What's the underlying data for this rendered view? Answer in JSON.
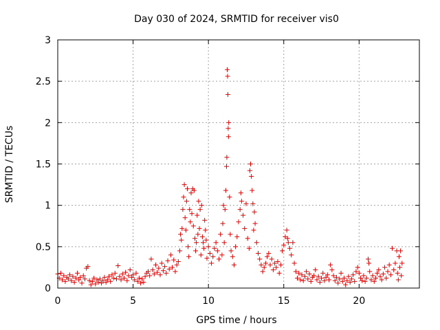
{
  "chart_data": {
    "type": "scatter",
    "title": "Day 030 of 2024, SRMTID for receiver vis0",
    "xlabel": "GPS time / hours",
    "ylabel": "SRMTID / TECUs",
    "xlim": [
      0,
      24
    ],
    "ylim": [
      0,
      3
    ],
    "x_ticks": [
      0,
      5,
      10,
      15,
      20
    ],
    "x_tick_labels": [
      "0",
      "5",
      "10",
      "15",
      "20"
    ],
    "y_ticks": [
      0,
      0.5,
      1,
      1.5,
      2,
      2.5,
      3
    ],
    "y_tick_labels": [
      "0",
      "0.5",
      "1",
      "1.5",
      "2",
      "2.5",
      "3"
    ],
    "grid": true,
    "marker": "+",
    "series": [
      {
        "name": "vis0",
        "color": "#e00000",
        "points": [
          [
            0.0,
            0.17
          ],
          [
            0.1,
            0.12
          ],
          [
            0.2,
            0.18
          ],
          [
            0.3,
            0.1
          ],
          [
            0.4,
            0.15
          ],
          [
            0.5,
            0.08
          ],
          [
            0.6,
            0.13
          ],
          [
            0.7,
            0.11
          ],
          [
            0.8,
            0.16
          ],
          [
            0.9,
            0.09
          ],
          [
            1.0,
            0.14
          ],
          [
            1.1,
            0.07
          ],
          [
            1.2,
            0.12
          ],
          [
            1.3,
            0.18
          ],
          [
            1.4,
            0.1
          ],
          [
            1.5,
            0.13
          ],
          [
            1.6,
            0.06
          ],
          [
            1.7,
            0.15
          ],
          [
            1.8,
            0.11
          ],
          [
            1.9,
            0.24
          ],
          [
            2.0,
            0.26
          ],
          [
            2.1,
            0.09
          ],
          [
            2.2,
            0.04
          ],
          [
            2.3,
            0.08
          ],
          [
            2.4,
            0.12
          ],
          [
            2.5,
            0.05
          ],
          [
            2.6,
            0.1
          ],
          [
            2.7,
            0.07
          ],
          [
            2.8,
            0.11
          ],
          [
            2.9,
            0.06
          ],
          [
            3.0,
            0.09
          ],
          [
            3.1,
            0.13
          ],
          [
            3.2,
            0.07
          ],
          [
            3.3,
            0.1
          ],
          [
            3.4,
            0.14
          ],
          [
            3.5,
            0.08
          ],
          [
            3.6,
            0.16
          ],
          [
            3.7,
            0.12
          ],
          [
            3.8,
            0.18
          ],
          [
            3.9,
            0.11
          ],
          [
            4.0,
            0.27
          ],
          [
            4.1,
            0.14
          ],
          [
            4.2,
            0.1
          ],
          [
            4.3,
            0.17
          ],
          [
            4.4,
            0.12
          ],
          [
            4.5,
            0.19
          ],
          [
            4.6,
            0.09
          ],
          [
            4.7,
            0.15
          ],
          [
            4.8,
            0.22
          ],
          [
            4.9,
            0.13
          ],
          [
            5.0,
            0.16
          ],
          [
            5.1,
            0.1
          ],
          [
            5.2,
            0.18
          ],
          [
            5.3,
            0.08
          ],
          [
            5.4,
            0.12
          ],
          [
            5.5,
            0.06
          ],
          [
            5.6,
            0.11
          ],
          [
            5.7,
            0.07
          ],
          [
            5.8,
            0.14
          ],
          [
            5.9,
            0.18
          ],
          [
            6.0,
            0.2
          ],
          [
            6.1,
            0.15
          ],
          [
            6.2,
            0.35
          ],
          [
            6.3,
            0.22
          ],
          [
            6.4,
            0.17
          ],
          [
            6.5,
            0.28
          ],
          [
            6.6,
            0.19
          ],
          [
            6.7,
            0.24
          ],
          [
            6.8,
            0.16
          ],
          [
            6.9,
            0.3
          ],
          [
            7.0,
            0.21
          ],
          [
            7.1,
            0.26
          ],
          [
            7.2,
            0.18
          ],
          [
            7.3,
            0.33
          ],
          [
            7.4,
            0.23
          ],
          [
            7.5,
            0.4
          ],
          [
            7.6,
            0.25
          ],
          [
            7.7,
            0.34
          ],
          [
            7.8,
            0.2
          ],
          [
            7.9,
            0.28
          ],
          [
            8.0,
            0.32
          ],
          [
            8.1,
            0.45
          ],
          [
            8.15,
            0.65
          ],
          [
            8.2,
            0.58
          ],
          [
            8.25,
            0.72
          ],
          [
            8.3,
            0.95
          ],
          [
            8.35,
            1.1
          ],
          [
            8.4,
            1.25
          ],
          [
            8.45,
            0.85
          ],
          [
            8.5,
            0.7
          ],
          [
            8.55,
            1.05
          ],
          [
            8.6,
            1.2
          ],
          [
            8.65,
            0.5
          ],
          [
            8.7,
            0.38
          ],
          [
            8.75,
            0.95
          ],
          [
            8.8,
            0.8
          ],
          [
            8.85,
            1.15
          ],
          [
            8.9,
            0.9
          ],
          [
            8.95,
            1.2
          ],
          [
            9.0,
            0.75
          ],
          [
            9.05,
            1.18
          ],
          [
            9.1,
            0.6
          ],
          [
            9.15,
            0.45
          ],
          [
            9.2,
            0.55
          ],
          [
            9.25,
            0.88
          ],
          [
            9.3,
            0.65
          ],
          [
            9.35,
            1.05
          ],
          [
            9.4,
            0.72
          ],
          [
            9.45,
            0.95
          ],
          [
            9.5,
            0.4
          ],
          [
            9.55,
            1.0
          ],
          [
            9.6,
            0.62
          ],
          [
            9.65,
            0.55
          ],
          [
            9.7,
            0.48
          ],
          [
            9.75,
            0.82
          ],
          [
            9.8,
            0.7
          ],
          [
            9.85,
            0.58
          ],
          [
            9.9,
            0.36
          ],
          [
            10.0,
            0.5
          ],
          [
            10.1,
            0.42
          ],
          [
            10.2,
            0.3
          ],
          [
            10.3,
            0.38
          ],
          [
            10.4,
            0.48
          ],
          [
            10.5,
            0.55
          ],
          [
            10.6,
            0.45
          ],
          [
            10.7,
            0.35
          ],
          [
            10.8,
            0.65
          ],
          [
            10.9,
            0.4
          ],
          [
            10.95,
            0.78
          ],
          [
            11.0,
            1.0
          ],
          [
            11.05,
            0.55
          ],
          [
            11.1,
            0.95
          ],
          [
            11.15,
            1.18
          ],
          [
            11.2,
            1.47
          ],
          [
            11.22,
            1.58
          ],
          [
            11.25,
            2.64
          ],
          [
            11.27,
            2.56
          ],
          [
            11.29,
            2.34
          ],
          [
            11.31,
            1.93
          ],
          [
            11.33,
            1.83
          ],
          [
            11.35,
            2.0
          ],
          [
            11.4,
            1.1
          ],
          [
            11.45,
            0.65
          ],
          [
            11.5,
            0.45
          ],
          [
            11.6,
            0.38
          ],
          [
            11.7,
            0.28
          ],
          [
            11.8,
            0.5
          ],
          [
            11.9,
            0.62
          ],
          [
            12.0,
            0.8
          ],
          [
            12.1,
            0.95
          ],
          [
            12.15,
            1.15
          ],
          [
            12.2,
            1.05
          ],
          [
            12.3,
            0.88
          ],
          [
            12.4,
            0.72
          ],
          [
            12.5,
            1.02
          ],
          [
            12.6,
            0.6
          ],
          [
            12.7,
            0.48
          ],
          [
            12.75,
            1.42
          ],
          [
            12.8,
            1.5
          ],
          [
            12.85,
            1.35
          ],
          [
            12.9,
            1.18
          ],
          [
            12.95,
            1.02
          ],
          [
            13.0,
            0.7
          ],
          [
            13.05,
            0.92
          ],
          [
            13.1,
            0.78
          ],
          [
            13.2,
            0.55
          ],
          [
            13.3,
            0.42
          ],
          [
            13.4,
            0.35
          ],
          [
            13.5,
            0.28
          ],
          [
            13.6,
            0.2
          ],
          [
            13.7,
            0.25
          ],
          [
            13.8,
            0.3
          ],
          [
            13.9,
            0.38
          ],
          [
            14.0,
            0.42
          ],
          [
            14.1,
            0.28
          ],
          [
            14.2,
            0.35
          ],
          [
            14.3,
            0.22
          ],
          [
            14.4,
            0.3
          ],
          [
            14.5,
            0.25
          ],
          [
            14.6,
            0.32
          ],
          [
            14.7,
            0.18
          ],
          [
            14.8,
            0.28
          ],
          [
            14.9,
            0.45
          ],
          [
            15.0,
            0.52
          ],
          [
            15.1,
            0.62
          ],
          [
            15.2,
            0.7
          ],
          [
            15.25,
            0.6
          ],
          [
            15.3,
            0.55
          ],
          [
            15.4,
            0.48
          ],
          [
            15.5,
            0.4
          ],
          [
            15.6,
            0.55
          ],
          [
            15.7,
            0.3
          ],
          [
            15.8,
            0.2
          ],
          [
            15.9,
            0.12
          ],
          [
            16.0,
            0.18
          ],
          [
            16.1,
            0.1
          ],
          [
            16.2,
            0.16
          ],
          [
            16.3,
            0.09
          ],
          [
            16.4,
            0.14
          ],
          [
            16.5,
            0.2
          ],
          [
            16.6,
            0.11
          ],
          [
            16.7,
            0.17
          ],
          [
            16.8,
            0.08
          ],
          [
            16.9,
            0.13
          ],
          [
            17.0,
            0.15
          ],
          [
            17.1,
            0.22
          ],
          [
            17.2,
            0.1
          ],
          [
            17.3,
            0.14
          ],
          [
            17.4,
            0.07
          ],
          [
            17.5,
            0.12
          ],
          [
            17.6,
            0.18
          ],
          [
            17.7,
            0.09
          ],
          [
            17.8,
            0.13
          ],
          [
            17.9,
            0.16
          ],
          [
            18.0,
            0.1
          ],
          [
            18.1,
            0.28
          ],
          [
            18.2,
            0.22
          ],
          [
            18.3,
            0.15
          ],
          [
            18.4,
            0.09
          ],
          [
            18.5,
            0.13
          ],
          [
            18.6,
            0.06
          ],
          [
            18.7,
            0.11
          ],
          [
            18.8,
            0.18
          ],
          [
            18.9,
            0.08
          ],
          [
            19.0,
            0.12
          ],
          [
            19.1,
            0.04
          ],
          [
            19.2,
            0.09
          ],
          [
            19.3,
            0.14
          ],
          [
            19.4,
            0.07
          ],
          [
            19.5,
            0.11
          ],
          [
            19.6,
            0.16
          ],
          [
            19.7,
            0.08
          ],
          [
            19.8,
            0.2
          ],
          [
            19.9,
            0.25
          ],
          [
            20.0,
            0.18
          ],
          [
            20.1,
            0.12
          ],
          [
            20.2,
            0.09
          ],
          [
            20.3,
            0.15
          ],
          [
            20.4,
            0.08
          ],
          [
            20.5,
            0.12
          ],
          [
            20.6,
            0.35
          ],
          [
            20.65,
            0.3
          ],
          [
            20.7,
            0.2
          ],
          [
            20.8,
            0.1
          ],
          [
            20.9,
            0.15
          ],
          [
            21.0,
            0.08
          ],
          [
            21.1,
            0.12
          ],
          [
            21.2,
            0.18
          ],
          [
            21.3,
            0.22
          ],
          [
            21.4,
            0.14
          ],
          [
            21.5,
            0.1
          ],
          [
            21.6,
            0.17
          ],
          [
            21.7,
            0.25
          ],
          [
            21.8,
            0.12
          ],
          [
            21.9,
            0.2
          ],
          [
            22.0,
            0.28
          ],
          [
            22.1,
            0.16
          ],
          [
            22.2,
            0.48
          ],
          [
            22.3,
            0.22
          ],
          [
            22.4,
            0.3
          ],
          [
            22.5,
            0.45
          ],
          [
            22.55,
            0.18
          ],
          [
            22.6,
            0.1
          ],
          [
            22.65,
            0.38
          ],
          [
            22.7,
            0.25
          ],
          [
            22.75,
            0.45
          ],
          [
            22.8,
            0.15
          ],
          [
            22.85,
            0.3
          ]
        ]
      }
    ]
  }
}
